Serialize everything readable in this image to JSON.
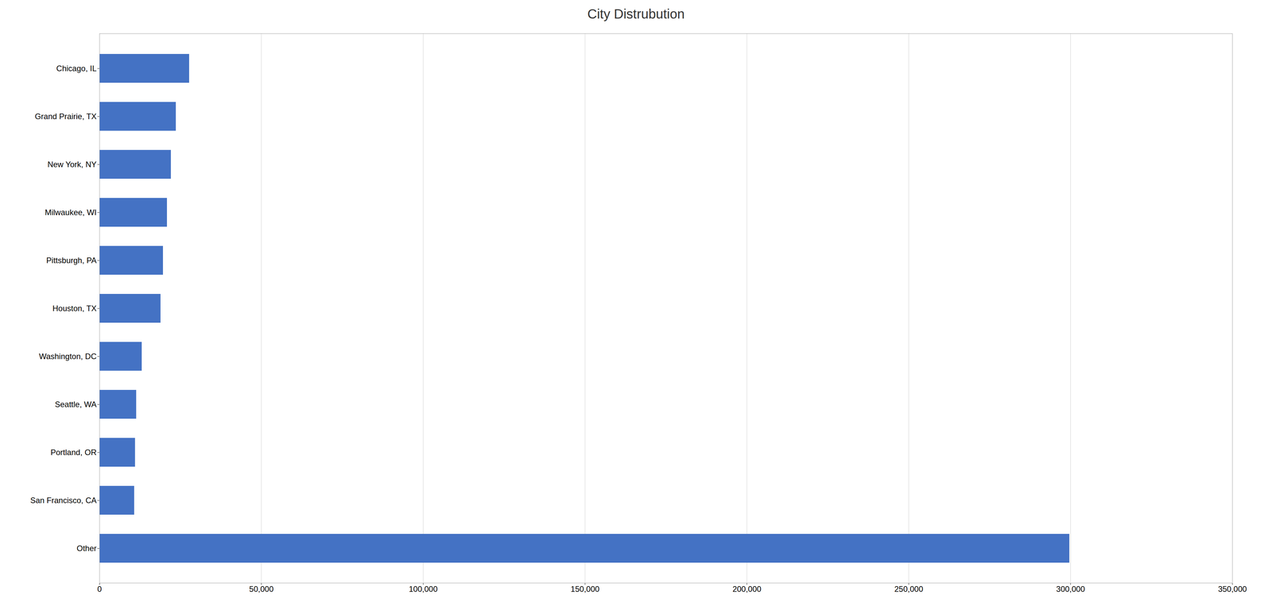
{
  "chart_data": {
    "type": "bar",
    "title": "City Distrubution",
    "orientation": "horizontal",
    "categories": [
      "Other",
      "San Francisco, CA",
      "Portland, OR",
      "Seattle, WA",
      "Washington, DC",
      "Houston, TX",
      "Pittsburgh, PA",
      "Milwaukee, WI",
      "New York, NY",
      "Grand Prairie, TX",
      "Chicago, IL"
    ],
    "values": [
      299665,
      10748,
      11015,
      11369,
      13082,
      18890,
      19645,
      20878,
      22090,
      23617,
      27730
    ],
    "color": "#4472C4",
    "xlim": [
      0,
      350000
    ],
    "xticks": [
      0,
      {
        "value": 50000,
        "label": "50,000"
      },
      {
        "value": 100000,
        "label": "100,000"
      },
      {
        "value": 150000,
        "label": "150,000"
      },
      {
        "value": 200000,
        "label": "200,000"
      },
      {
        "value": 250000,
        "label": "250,000"
      },
      {
        "value": 300000,
        "label": "300,000"
      },
      {
        "value": 350000,
        "label": "350,000"
      }
    ],
    "grid": true
  }
}
